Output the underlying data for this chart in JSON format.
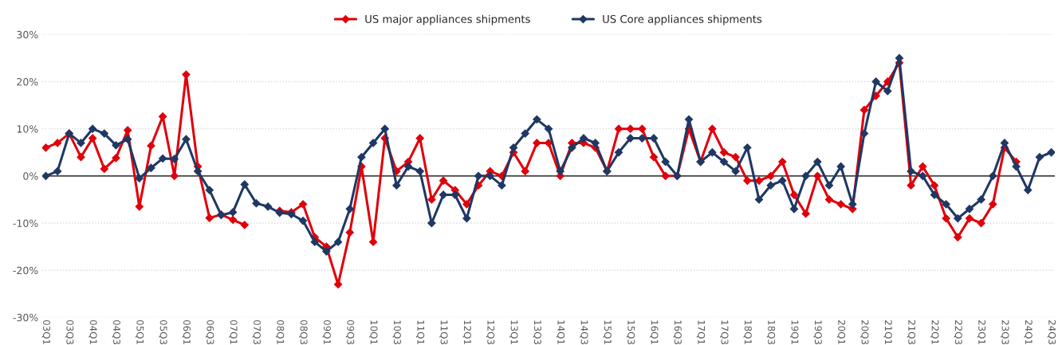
{
  "chart_data": {
    "type": "line",
    "categories": [
      "03Q1",
      null,
      "03Q3",
      null,
      "04Q1",
      null,
      "04Q3",
      null,
      "05Q1",
      null,
      "05Q3",
      null,
      "06Q1",
      null,
      "06Q3",
      null,
      "07Q1",
      null,
      "07Q3",
      null,
      "08Q1",
      null,
      "08Q3",
      null,
      "09Q1",
      null,
      "09Q3",
      null,
      "10Q1",
      null,
      "10Q3",
      null,
      "11Q1",
      null,
      "11Q3",
      null,
      "12Q1",
      null,
      "12Q3",
      null,
      "13Q1",
      null,
      "13Q3",
      null,
      "14Q1",
      null,
      "14Q3",
      null,
      "15Q1",
      null,
      "15Q3",
      null,
      "16Q1",
      null,
      "16Q3",
      null,
      "17Q1",
      null,
      "17Q3",
      null,
      "18Q1",
      null,
      "18Q3",
      null,
      "19Q1",
      null,
      "19Q3",
      null,
      "20Q1",
      null,
      "20Q3",
      null,
      "21Q1",
      null,
      "21Q3",
      null,
      "22Q1",
      null,
      "22Q3",
      null,
      "23Q1",
      null,
      "23Q3",
      null,
      "24Q1",
      null,
      "24Q3"
    ],
    "series": [
      {
        "name": "US major appliances shipments",
        "color": "#e0000b",
        "values": [
          6,
          7,
          9,
          4,
          8,
          1.5,
          3.8,
          9.7,
          -6.5,
          6.4,
          12.6,
          0,
          21.5,
          2,
          -8.9,
          -8.2,
          -9.3,
          -10.4,
          null,
          null,
          -7.4,
          -7.7,
          -6,
          -13,
          -15,
          -23,
          -12,
          2,
          -14,
          8,
          1,
          3,
          8,
          -5,
          -1,
          -3,
          -6,
          -2,
          1,
          0,
          5,
          1,
          7,
          7,
          0,
          7,
          7,
          6,
          1,
          10,
          10,
          10,
          4,
          0,
          0,
          10,
          3,
          10,
          5,
          4,
          -1,
          -1,
          0,
          3,
          -4,
          -8,
          0,
          -5,
          -6,
          -7,
          14,
          17,
          20,
          24,
          -2,
          2,
          -2,
          -9,
          -13,
          -9,
          -10,
          -6,
          6,
          3,
          null,
          null,
          null
        ]
      },
      {
        "name": "US Core appliances shipments",
        "color": "#1f3864",
        "values": [
          0,
          1,
          9,
          7,
          10,
          9,
          6.5,
          7.8,
          -0.5,
          1.7,
          3.7,
          3.6,
          7.8,
          1,
          -3,
          -8.3,
          -7.7,
          -1.8,
          -5.8,
          -6.5,
          -7.8,
          -8.1,
          -9.5,
          -14,
          -16,
          -14,
          -7,
          4,
          7,
          10,
          -2,
          2,
          1,
          -10,
          -4,
          -4,
          -9,
          0,
          0,
          -2,
          6,
          9,
          12,
          10,
          1,
          6,
          8,
          7,
          1,
          5,
          8,
          8,
          8,
          3,
          0,
          12,
          3,
          5,
          3,
          1,
          6,
          -5,
          -2,
          -1,
          -7,
          0,
          3,
          -2,
          2,
          -6,
          9,
          20,
          18,
          25,
          1,
          0,
          -4,
          -6,
          -9,
          -7,
          -5,
          0,
          7,
          2,
          -3,
          4,
          5
        ]
      }
    ],
    "ylim": [
      -30,
      30
    ],
    "yticks": [
      {
        "value": -30,
        "label": "-30%"
      },
      {
        "value": -20,
        "label": "-20%"
      },
      {
        "value": -10,
        "label": "-10%"
      },
      {
        "value": 0,
        "label": "0%"
      },
      {
        "value": 10,
        "label": "10%"
      },
      {
        "value": 20,
        "label": "20%"
      },
      {
        "value": 30,
        "label": "30%"
      }
    ],
    "ref_lines": [
      {
        "axis": "y",
        "value": 0,
        "color": "#000000"
      }
    ],
    "grid": "y",
    "legend": "top",
    "marker": "diamond",
    "line_style": "solid"
  }
}
